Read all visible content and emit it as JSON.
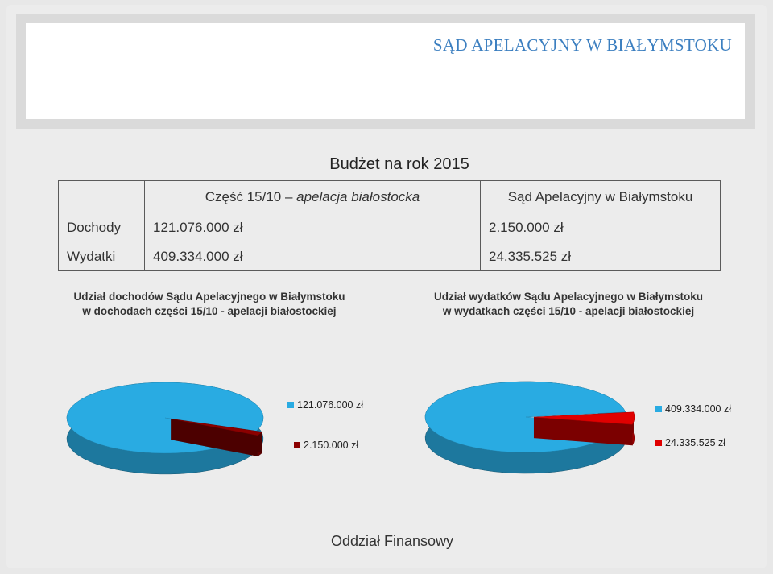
{
  "header": {
    "title": "SĄD APELACYJNY W BIAŁYMSTOKU"
  },
  "budget": {
    "title": "Budżet na rok 2015",
    "col_part_prefix": "Część 15/10 – ",
    "col_part_italic": "apelacja białostocka",
    "col_court": "Sąd Apelacyjny w Białymstoku",
    "rows": [
      {
        "label": "Dochody",
        "part": "121.076.000 zł",
        "court": "2.150.000 zł"
      },
      {
        "label": "Wydatki",
        "part": "409.334.000 zł",
        "court": "24.335.525 zł"
      }
    ]
  },
  "chart_data": [
    {
      "type": "pie",
      "title_line1": "Udział dochodów Sądu Apelacyjnego w Białymstoku",
      "title_line2": "w dochodach części 15/10 - apelacji białostockiej",
      "slices": [
        {
          "label": "121.076.000 zł",
          "value": 121076000,
          "color": "#29abe2"
        },
        {
          "label": "2.150.000 zł",
          "value": 2150000,
          "color": "#8b0000"
        }
      ]
    },
    {
      "type": "pie",
      "title_line1": "Udział wydatków Sądu Apelacyjnego w Białymstoku",
      "title_line2": "w wydatkach części 15/10 - apelacji białostockiej",
      "slices": [
        {
          "label": "409.334.000 zł",
          "value": 409334000,
          "color": "#29abe2"
        },
        {
          "label": "24.335.525 zł",
          "value": 24335525,
          "color": "#e00000"
        }
      ]
    }
  ],
  "footer": {
    "text": "Oddział Finansowy"
  }
}
